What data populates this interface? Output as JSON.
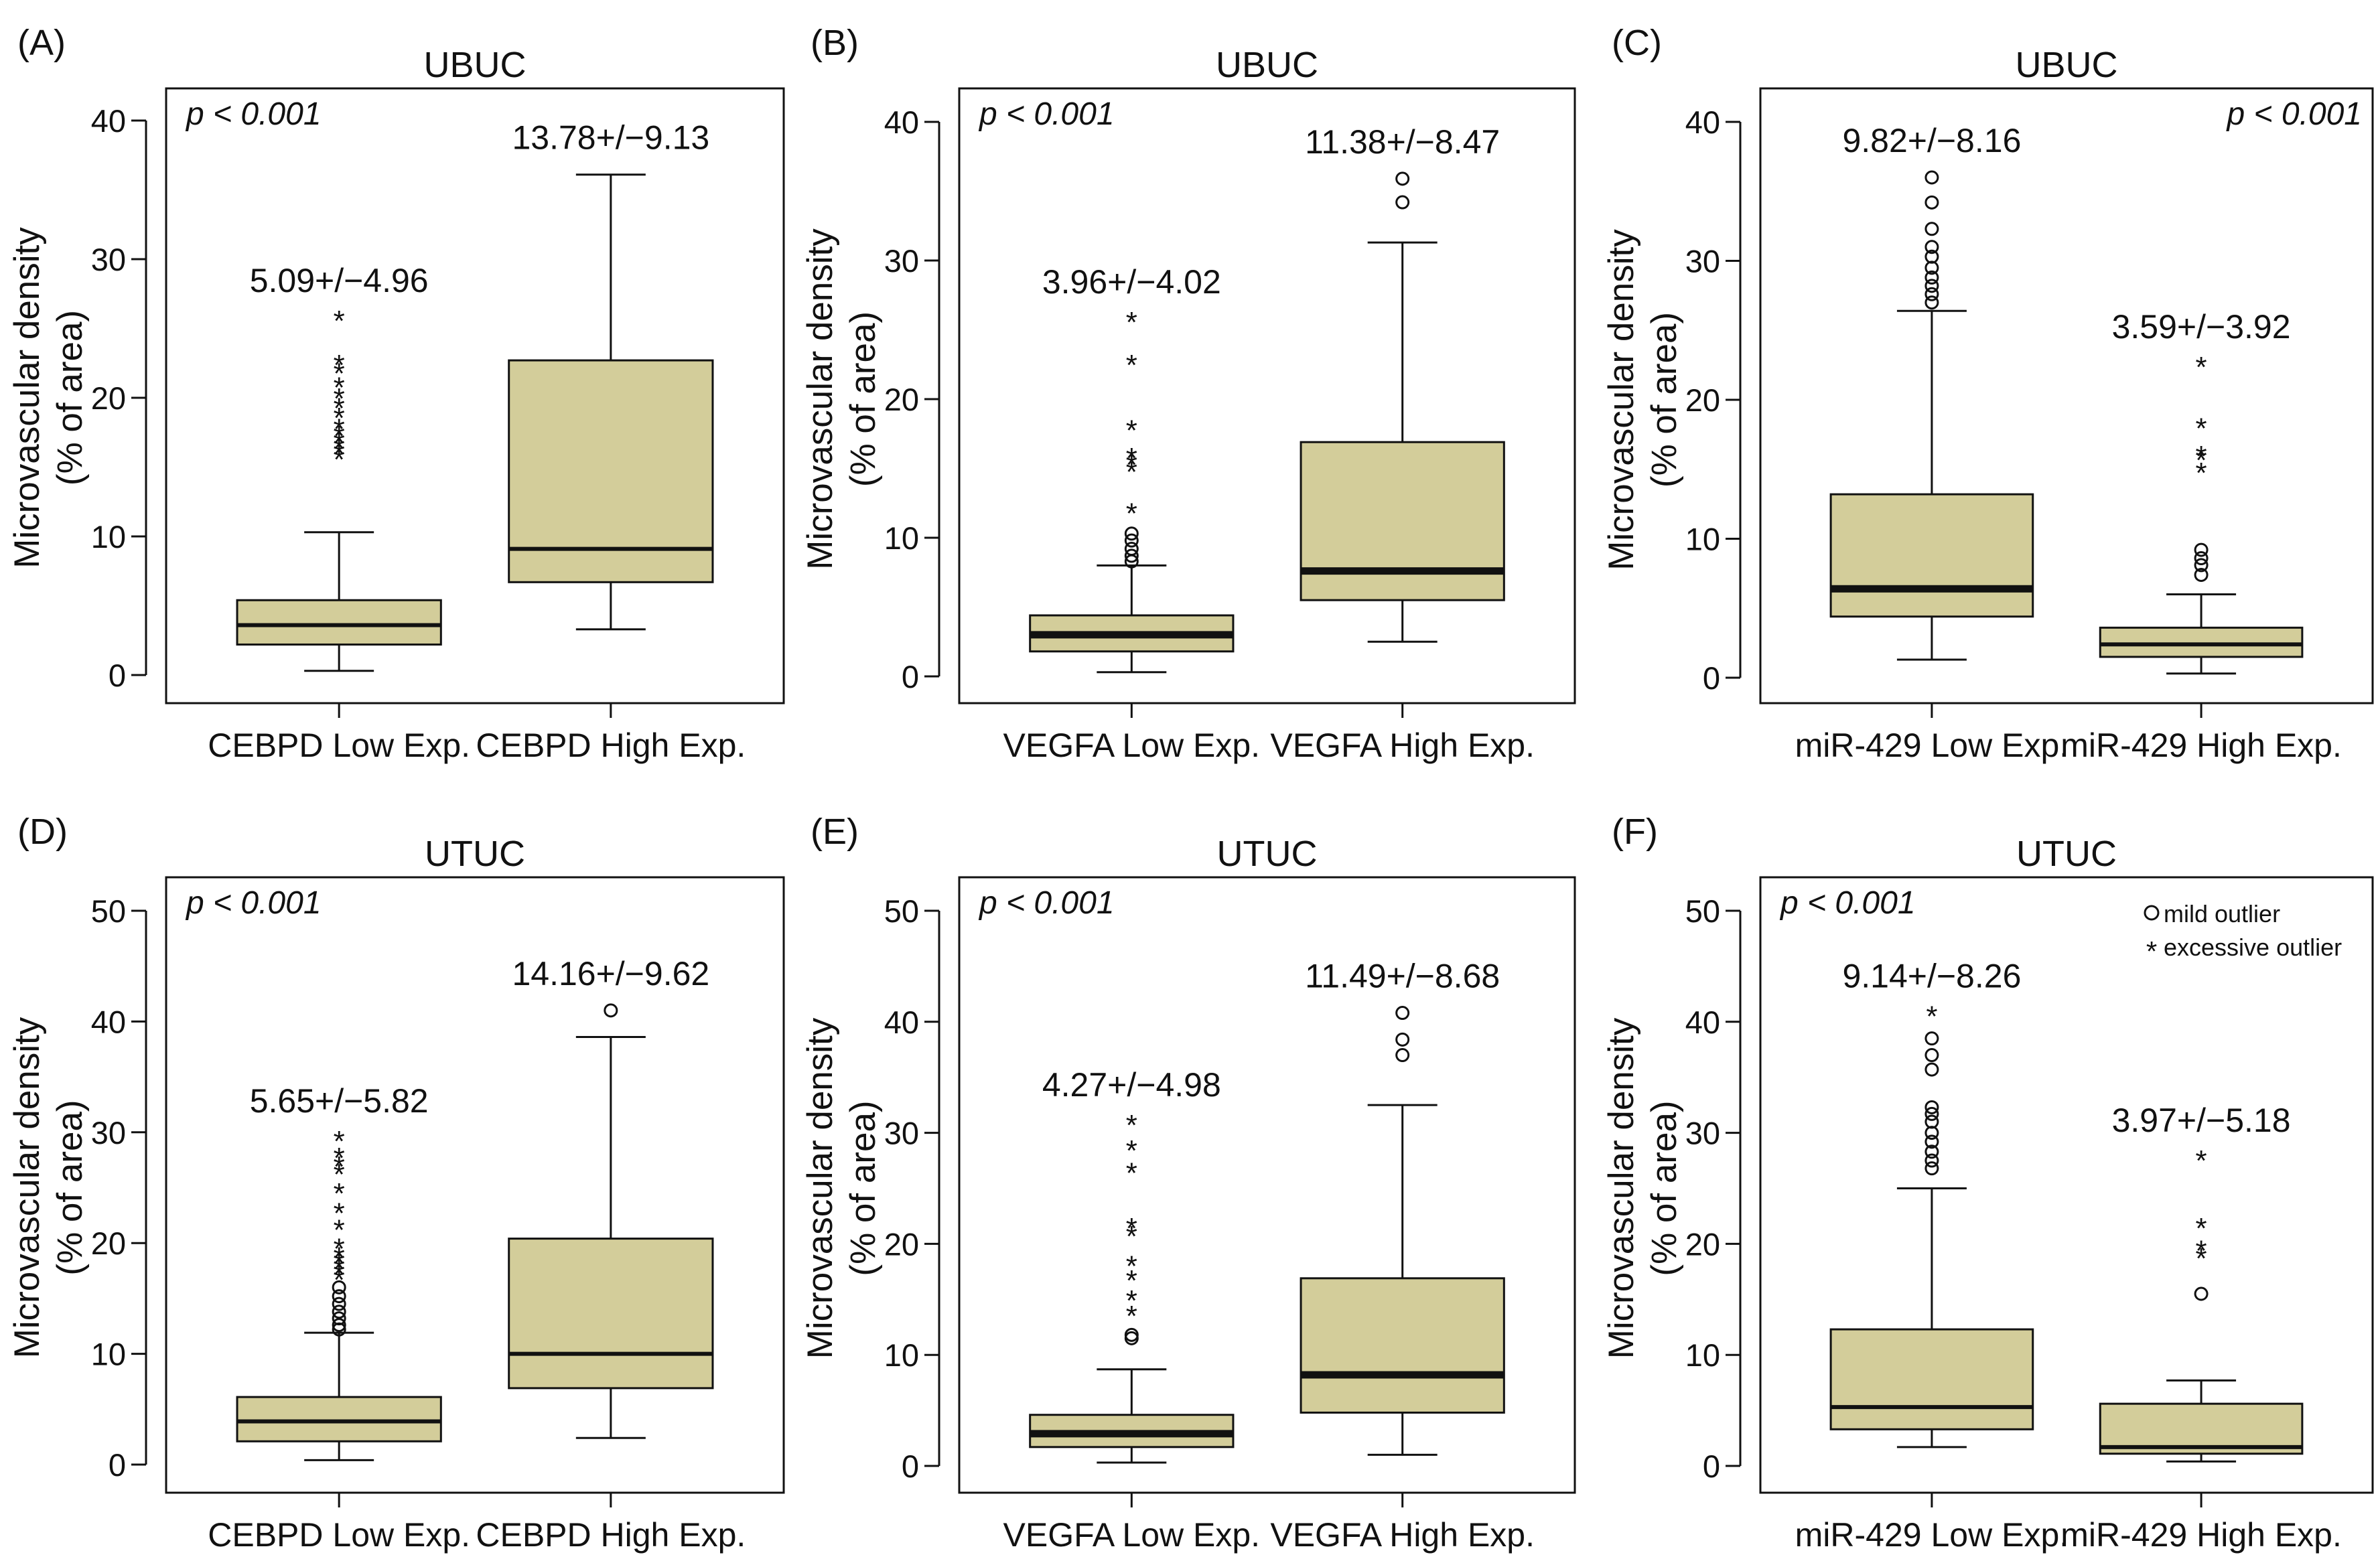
{
  "figure": {
    "box_fill": "#d3cd9a",
    "ink": "#111111",
    "legend": {
      "mild": "mild outlier",
      "excessive": "excessive outlier",
      "mild_symbol": "o",
      "excessive_symbol": "*"
    }
  },
  "chart_data": [
    {
      "type": "box",
      "panel_label": "(A)",
      "title": "UBUC",
      "ylabel_line1": "Microvascular density",
      "ylabel_line2": "(% of area)",
      "ylim": [
        0,
        40
      ],
      "yticks": [
        0,
        10,
        20,
        30,
        40
      ],
      "pvalue": "p < 0.001",
      "pvalue_pos": "left",
      "categories": [
        "CEBPD Low Exp.",
        "CEBPD High Exp."
      ],
      "groups": [
        {
          "name": "CEBPD Low Exp.",
          "annotation": "5.09+/−4.96",
          "min": 0.3,
          "q1": 2.2,
          "median": 3.6,
          "q3": 5.4,
          "max": 10.3,
          "median_weight": "normal",
          "mild": [],
          "excessive": [
            15.8,
            16.2,
            16.6,
            17.0,
            17.5,
            18.0,
            18.8,
            19.5,
            20.2,
            21.0,
            22.0,
            22.6,
            25.8
          ]
        },
        {
          "name": "CEBPD High Exp.",
          "annotation": "13.78+/−9.13",
          "min": 3.3,
          "q1": 6.7,
          "median": 9.1,
          "q3": 22.7,
          "max": 36.1,
          "median_weight": "normal",
          "mild": [],
          "excessive": []
        }
      ]
    },
    {
      "type": "box",
      "panel_label": "(B)",
      "title": "UBUC",
      "ylabel_line1": "Microvascular density",
      "ylabel_line2": "(% of area)",
      "ylim": [
        0,
        40
      ],
      "yticks": [
        0,
        10,
        20,
        30,
        40
      ],
      "pvalue": "p < 0.001",
      "pvalue_pos": "left",
      "categories": [
        "VEGFA Low Exp.",
        "VEGFA High Exp."
      ],
      "groups": [
        {
          "name": "VEGFA Low Exp.",
          "annotation": "3.96+/−4.02",
          "min": 0.3,
          "q1": 1.8,
          "median": 3.0,
          "q3": 4.4,
          "max": 8.0,
          "median_weight": "bold",
          "mild": [
            8.3,
            8.7,
            9.2,
            9.8,
            10.3
          ],
          "excessive": [
            12.0,
            15.0,
            15.5,
            16.0,
            18.0,
            22.7,
            25.8
          ]
        },
        {
          "name": "VEGFA High Exp.",
          "annotation": "11.38+/−8.47",
          "min": 2.5,
          "q1": 5.5,
          "median": 7.6,
          "q3": 16.9,
          "max": 31.3,
          "median_weight": "bold",
          "mild": [
            34.2,
            35.9
          ],
          "excessive": []
        }
      ]
    },
    {
      "type": "box",
      "panel_label": "(C)",
      "title": "UBUC",
      "ylabel_line1": "Microvascular density",
      "ylabel_line2": "(% of area)",
      "ylim": [
        0,
        40
      ],
      "yticks": [
        0,
        10,
        20,
        30,
        40
      ],
      "pvalue": "p < 0.001",
      "pvalue_pos": "right",
      "categories": [
        "miR-429 Low Exp.",
        "miR-429 High Exp."
      ],
      "groups": [
        {
          "name": "miR-429 Low Exp.",
          "annotation": "9.82+/−8.16",
          "min": 1.3,
          "q1": 4.4,
          "median": 6.4,
          "q3": 13.2,
          "max": 26.4,
          "median_weight": "bold",
          "mild": [
            27.0,
            27.6,
            28.2,
            28.8,
            29.5,
            30.3,
            31.0,
            32.3,
            34.2,
            36.0
          ],
          "excessive": []
        },
        {
          "name": "miR-429 High Exp.",
          "annotation": "3.59+/−3.92",
          "min": 0.3,
          "q1": 1.5,
          "median": 2.4,
          "q3": 3.6,
          "max": 6.0,
          "median_weight": "normal",
          "mild": [
            7.4,
            8.1,
            8.6,
            9.2
          ],
          "excessive": [
            15.0,
            15.9,
            16.2,
            18.2,
            22.6
          ]
        }
      ]
    },
    {
      "type": "box",
      "panel_label": "(D)",
      "title": "UTUC",
      "ylabel_line1": "Microvascular density",
      "ylabel_line2": "(% of area)",
      "ylim": [
        0,
        50
      ],
      "yticks": [
        0,
        10,
        20,
        30,
        40,
        50
      ],
      "pvalue": "p < 0.001",
      "pvalue_pos": "left",
      "categories": [
        "CEBPD Low Exp.",
        "CEBPD High Exp."
      ],
      "groups": [
        {
          "name": "CEBPD Low Exp.",
          "annotation": "5.65+/−5.82",
          "min": 0.4,
          "q1": 2.1,
          "median": 3.9,
          "q3": 6.1,
          "max": 11.9,
          "median_weight": "normal",
          "mild": [
            12.2,
            12.6,
            13.2,
            13.8,
            14.5,
            15.2,
            16.0
          ],
          "excessive": [
            17.0,
            17.5,
            18.0,
            18.5,
            19.0,
            19.8,
            21.5,
            23.0,
            24.8,
            26.5,
            27.2,
            28.0,
            29.5
          ]
        },
        {
          "name": "CEBPD High Exp.",
          "annotation": "14.16+/−9.62",
          "min": 2.4,
          "q1": 6.9,
          "median": 10.0,
          "q3": 20.4,
          "max": 38.6,
          "median_weight": "normal",
          "mild": [
            41.0
          ],
          "excessive": []
        }
      ]
    },
    {
      "type": "box",
      "panel_label": "(E)",
      "title": "UTUC",
      "ylabel_line1": "Microvascular density",
      "ylabel_line2": "(% of area)",
      "ylim": [
        0,
        50
      ],
      "yticks": [
        0,
        10,
        20,
        30,
        40,
        50
      ],
      "pvalue": "p < 0.001",
      "pvalue_pos": "left",
      "categories": [
        "VEGFA Low Exp.",
        "VEGFA High Exp."
      ],
      "groups": [
        {
          "name": "VEGFA Low Exp.",
          "annotation": "4.27+/−4.98",
          "min": 0.3,
          "q1": 1.7,
          "median": 2.9,
          "q3": 4.6,
          "max": 8.7,
          "median_weight": "bold",
          "mild": [
            11.5,
            11.8
          ],
          "excessive": [
            13.8,
            15.2,
            17.0,
            18.3,
            21.0,
            21.7,
            26.7,
            28.7,
            31.0
          ]
        },
        {
          "name": "VEGFA High Exp.",
          "annotation": "11.49+/−8.68",
          "min": 1.0,
          "q1": 4.8,
          "median": 8.2,
          "q3": 16.9,
          "max": 32.5,
          "median_weight": "bold",
          "mild": [
            37.0,
            38.4,
            40.8
          ],
          "excessive": []
        }
      ]
    },
    {
      "type": "box",
      "panel_label": "(F)",
      "title": "UTUC",
      "ylabel_line1": "Microvascular density",
      "ylabel_line2": "(% of area)",
      "ylim": [
        0,
        50
      ],
      "yticks": [
        0,
        10,
        20,
        30,
        40,
        50
      ],
      "pvalue": "p < 0.001",
      "pvalue_pos": "left",
      "show_legend": true,
      "categories": [
        "miR-429 Low Exp.",
        "miR-429 High Exp."
      ],
      "groups": [
        {
          "name": "miR-429 Low Exp.",
          "annotation": "9.14+/−8.26",
          "min": 1.7,
          "q1": 3.3,
          "median": 5.3,
          "q3": 12.3,
          "max": 25.0,
          "median_weight": "normal",
          "mild": [
            26.8,
            27.5,
            28.3,
            29.2,
            30.0,
            31.0,
            31.7,
            32.3,
            35.7,
            37.0,
            38.5
          ],
          "excessive": [
            40.8
          ]
        },
        {
          "name": "miR-429 High Exp.",
          "annotation": "3.97+/−5.18",
          "min": 0.4,
          "q1": 1.1,
          "median": 1.7,
          "q3": 5.6,
          "max": 7.7,
          "median_weight": "normal",
          "mild": [
            15.5
          ],
          "excessive": [
            19.0,
            19.7,
            21.7,
            27.8
          ]
        }
      ]
    }
  ]
}
